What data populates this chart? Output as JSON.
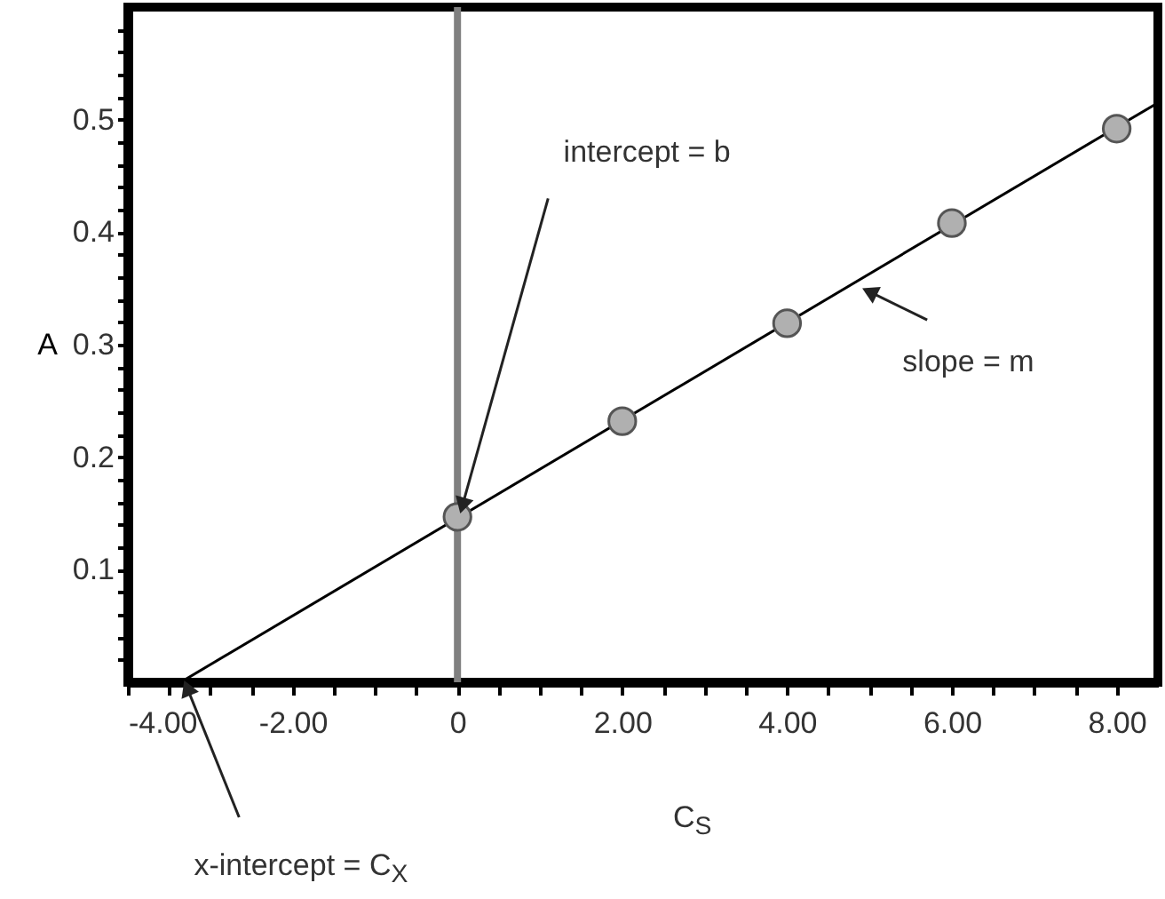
{
  "chart_data": {
    "type": "scatter",
    "xlabel": "C$_{S}$",
    "ylabel": "A",
    "xlim": [
      -4,
      8.5
    ],
    "ylim": [
      0,
      0.6
    ],
    "xticks": [
      {
        "value": -4,
        "label": "-4.00"
      },
      {
        "value": -3.5,
        "label": null
      },
      {
        "value": -3,
        "label": null
      },
      {
        "value": -2.5,
        "label": null
      },
      {
        "value": -2,
        "label": "-2.00"
      },
      {
        "value": -1.5,
        "label": null
      },
      {
        "value": -1,
        "label": null
      },
      {
        "value": -0.5,
        "label": null
      },
      0,
      {
        "value": 0.5,
        "label": null
      },
      {
        "value": 1,
        "label": null
      },
      {
        "value": 1.5,
        "label": null
      },
      {
        "value": 2,
        "label": "2.00"
      },
      {
        "value": 2.5,
        "label": null
      },
      {
        "value": 3,
        "label": null
      },
      {
        "value": 3.5,
        "label": null
      },
      {
        "value": 4,
        "label": "4.00"
      },
      {
        "value": 4.5,
        "label": null
      },
      {
        "value": 5,
        "label": null
      },
      {
        "value": 5.5,
        "label": null
      },
      {
        "value": 6,
        "label": "6.00"
      },
      {
        "value": 6.5,
        "label": null
      },
      {
        "value": 7,
        "label": null
      },
      {
        "value": 7.5,
        "label": null
      },
      {
        "value": 8,
        "label": "8.00"
      }
    ],
    "yticks": [
      {
        "value": 0.02,
        "label": null
      },
      {
        "value": 0.04,
        "label": null
      },
      {
        "value": 0.06,
        "label": null
      },
      {
        "value": 0.08,
        "label": null
      },
      0.1,
      {
        "value": 0.12,
        "label": null
      },
      {
        "value": 0.14,
        "label": null
      },
      {
        "value": 0.16,
        "label": null
      },
      {
        "value": 0.18,
        "label": null
      },
      0.2,
      {
        "value": 0.22,
        "label": null
      },
      {
        "value": 0.24,
        "label": null
      },
      {
        "value": 0.26,
        "label": null
      },
      {
        "value": 0.28,
        "label": null
      },
      0.3,
      {
        "value": 0.32,
        "label": null
      },
      {
        "value": 0.34,
        "label": null
      },
      {
        "value": 0.36,
        "label": null
      },
      {
        "value": 0.38,
        "label": null
      },
      0.4,
      {
        "value": 0.42,
        "label": null
      },
      {
        "value": 0.44,
        "label": null
      },
      {
        "value": 0.46,
        "label": null
      },
      {
        "value": 0.48,
        "label": null
      },
      0.5,
      {
        "value": 0.52,
        "label": null
      },
      {
        "value": 0.54,
        "label": null
      },
      {
        "value": 0.56,
        "label": null
      },
      {
        "value": 0.58,
        "label": null
      }
    ],
    "grid": false,
    "legend": false,
    "series": [
      {
        "type": "line",
        "marker": "none",
        "color": "#000000",
        "x": [
          -3.36,
          8.5
        ],
        "values": [
          0,
          0.515
        ]
      },
      {
        "marker": "circle",
        "color": "#b0b0b0",
        "x": [
          0,
          2,
          4,
          6,
          8
        ],
        "values": [
          0.147,
          0.232,
          0.319,
          0.408,
          0.492
        ]
      }
    ],
    "ref_lines": [
      {
        "axis": "x",
        "value": 0,
        "label": null,
        "color": "#808080"
      }
    ],
    "annotations": [
      {
        "text": "intercept = b",
        "x": 0,
        "y": 0.147
      },
      {
        "text": "slope = m",
        "x": 5,
        "y": 0.364
      },
      {
        "text": "x-intercept = C$_{X}$",
        "x": -3.36,
        "y": 0
      }
    ]
  }
}
